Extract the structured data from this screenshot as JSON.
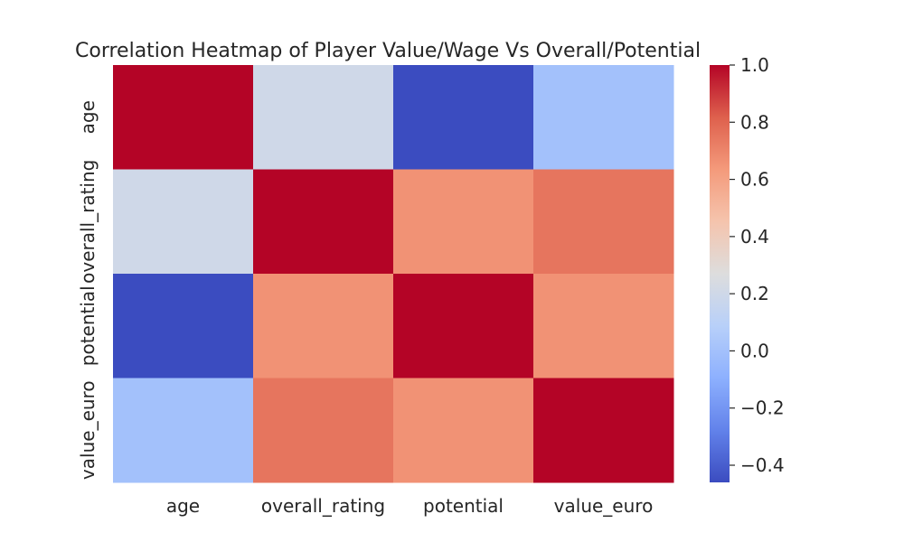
{
  "chart_data": {
    "type": "heatmap",
    "title": "Correlation Heatmap of Player Value/Wage Vs Overall/Potential",
    "xlabel": "",
    "ylabel": "",
    "x_categories": [
      "age",
      "overall_rating",
      "potential",
      "value_euro"
    ],
    "y_categories": [
      "age",
      "overall_rating",
      "potential",
      "value_euro"
    ],
    "values": [
      [
        1.0,
        0.2,
        -0.46,
        0.0
      ],
      [
        0.2,
        1.0,
        0.66,
        0.75
      ],
      [
        -0.46,
        0.66,
        1.0,
        0.66
      ],
      [
        0.0,
        0.75,
        0.66,
        1.0
      ]
    ],
    "colorbar": {
      "range": [
        -0.46,
        1.0
      ],
      "ticks": [
        -0.4,
        -0.2,
        0.0,
        0.2,
        0.4,
        0.6,
        0.8,
        1.0
      ],
      "tick_labels": [
        "−0.4",
        "−0.2",
        "0.0",
        "0.2",
        "0.4",
        "0.6",
        "0.8",
        "1.0"
      ]
    },
    "colormap": "coolwarm",
    "grid": false
  }
}
